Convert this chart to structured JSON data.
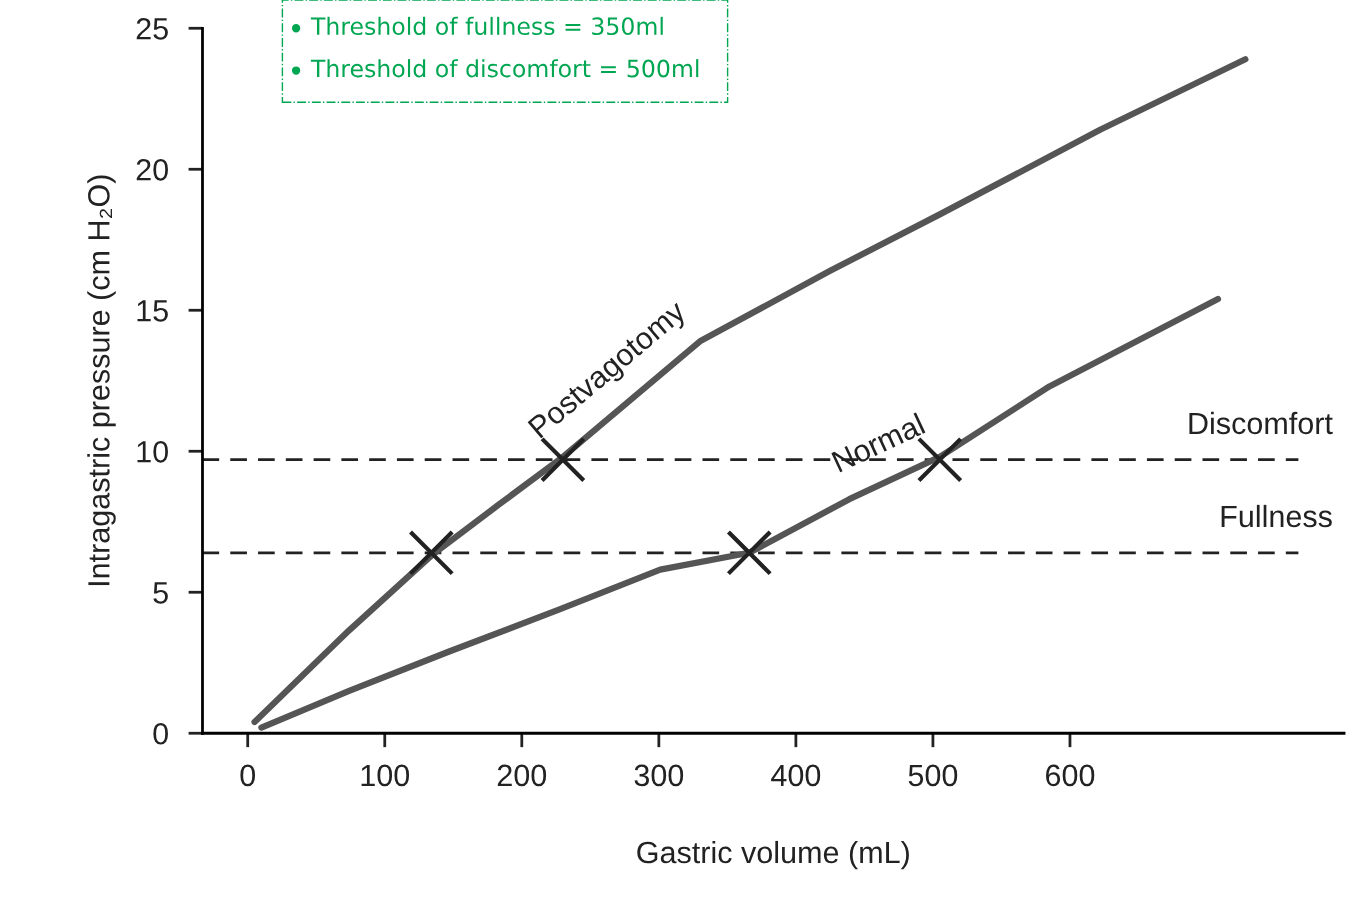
{
  "chart_data": {
    "type": "line",
    "xlabel": "Gastric volume (mL)",
    "ylabel": "Intragastric pressure (cm H₂O)",
    "xlim": [
      -33,
      800
    ],
    "ylim": [
      0,
      25
    ],
    "xticks": [
      0,
      100,
      200,
      300,
      400,
      500,
      600
    ],
    "yticks": [
      0,
      5,
      10,
      15,
      20,
      25
    ],
    "grid": false,
    "legend": false,
    "line_style": "solid",
    "marker": "none",
    "series": [
      {
        "name": "Postvagotomy",
        "color": "#555555",
        "x": [
          5,
          74,
          134,
          183,
          230,
          330,
          425,
          505,
          622,
          728
        ],
        "values": [
          0.4,
          3.65,
          6.3,
          8.1,
          9.8,
          13.9,
          16.4,
          18.4,
          21.4,
          23.9
        ]
      },
      {
        "name": "Normal",
        "color": "#555555",
        "x": [
          10,
          74,
          147,
          228,
          301,
          366,
          439,
          505,
          585,
          708
        ],
        "values": [
          0.2,
          1.5,
          2.9,
          4.4,
          5.8,
          6.4,
          8.3,
          9.8,
          12.3,
          15.4
        ]
      },
      {
        "type": "scatter",
        "marker": "cross",
        "color": "#222222",
        "x": [
          134,
          230,
          366,
          505
        ],
        "values": [
          6.4,
          9.7,
          6.4,
          9.7
        ]
      }
    ],
    "ref_lines": [
      {
        "axis": "y",
        "value": 9.7,
        "label": "Discomfort",
        "color": "#222222",
        "line_style": "dashed"
      },
      {
        "axis": "y",
        "value": 6.4,
        "label": "Fullness",
        "color": "#222222",
        "line_style": "dashed"
      }
    ],
    "annotations": [
      "Threshold of fullness = 350ml",
      "Threshold of discomfort = 500ml"
    ]
  }
}
